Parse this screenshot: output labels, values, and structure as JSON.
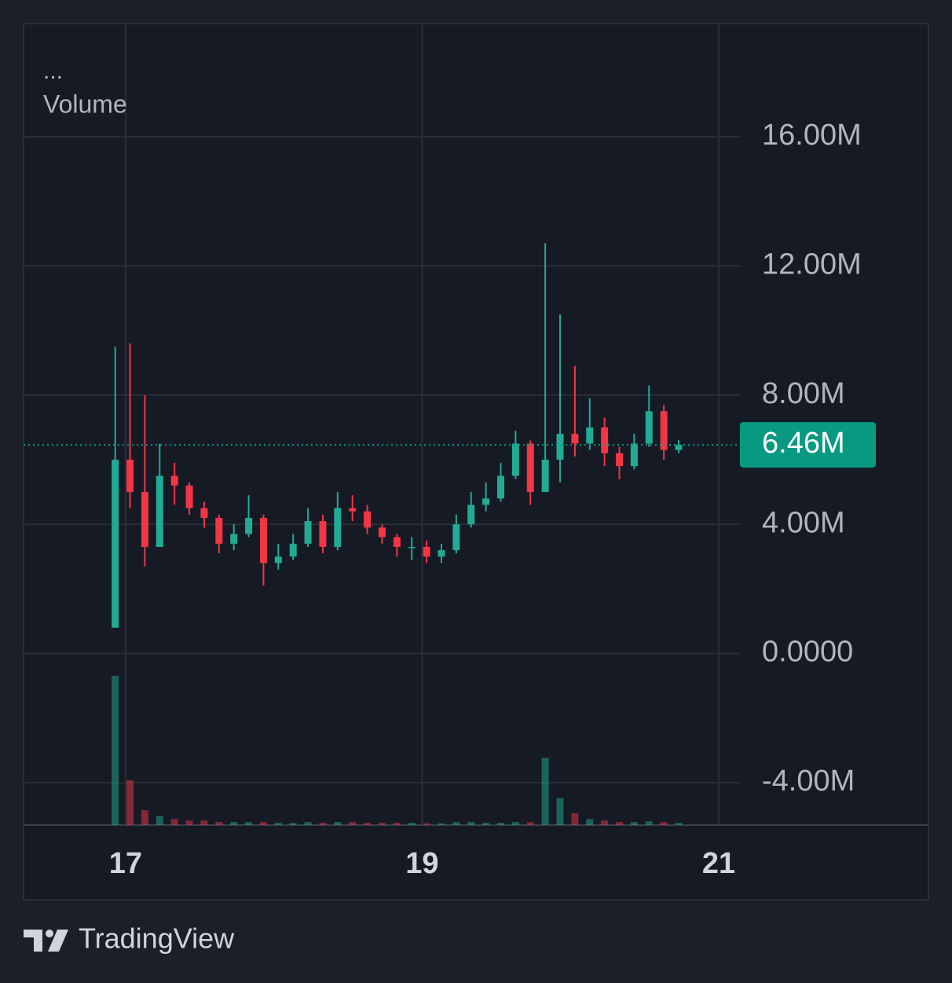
{
  "chart_data": {
    "type": "candlestick",
    "menu": "...",
    "title": "Volume",
    "x": [
      16.93,
      17.03,
      17.13,
      17.23,
      17.33,
      17.43,
      17.53,
      17.63,
      17.73,
      17.83,
      17.93,
      18.03,
      18.13,
      18.23,
      18.33,
      18.43,
      18.53,
      18.63,
      18.73,
      18.83,
      18.93,
      19.03,
      19.13,
      19.23,
      19.33,
      19.43,
      19.53,
      19.63,
      19.73,
      19.83,
      19.93,
      20.03,
      20.13,
      20.23,
      20.33,
      20.43,
      20.53,
      20.63,
      20.73
    ],
    "open": [
      800000,
      6000000,
      5000000,
      3300000,
      5500000,
      5200000,
      4500000,
      4200000,
      3400000,
      3700000,
      4200000,
      2800000,
      3000000,
      3400000,
      4100000,
      3300000,
      4500000,
      4400000,
      3900000,
      3600000,
      3300000,
      3300000,
      3000000,
      3200000,
      4000000,
      4600000,
      4800000,
      5500000,
      6500000,
      5000000,
      6000000,
      6800000,
      6500000,
      7000000,
      6200000,
      5800000,
      6500000,
      7500000,
      6300000
    ],
    "high": [
      9500000,
      9600000,
      8000000,
      6500000,
      5900000,
      5300000,
      4700000,
      4300000,
      4000000,
      4900000,
      4300000,
      3400000,
      3700000,
      4500000,
      4300000,
      5000000,
      4900000,
      4600000,
      4000000,
      3700000,
      3600000,
      3500000,
      3400000,
      4300000,
      5000000,
      5300000,
      5900000,
      6900000,
      6600000,
      12700000,
      10500000,
      8900000,
      7900000,
      7300000,
      6400000,
      6800000,
      8300000,
      7700000,
      6600000
    ],
    "low": [
      800000,
      4500000,
      2700000,
      3300000,
      4600000,
      4300000,
      3900000,
      3100000,
      3200000,
      3600000,
      2100000,
      2600000,
      2900000,
      3300000,
      3100000,
      3200000,
      4100000,
      3700000,
      3400000,
      3000000,
      2900000,
      2800000,
      2800000,
      3100000,
      3900000,
      4400000,
      4700000,
      5400000,
      4600000,
      5000000,
      5300000,
      6100000,
      6300000,
      5800000,
      5400000,
      5700000,
      6400000,
      6000000,
      6200000
    ],
    "close": [
      6000000,
      5000000,
      3300000,
      5500000,
      5200000,
      4500000,
      4200000,
      3400000,
      3700000,
      4200000,
      2800000,
      3000000,
      3400000,
      4100000,
      3300000,
      4500000,
      4400000,
      3900000,
      3600000,
      3300000,
      3300000,
      3000000,
      3200000,
      4000000,
      4600000,
      4800000,
      5500000,
      6500000,
      5000000,
      6000000,
      6800000,
      6500000,
      7000000,
      6200000,
      5800000,
      6500000,
      7500000,
      6300000,
      6460000
    ],
    "volume": [
      100,
      30,
      10,
      6,
      4,
      3,
      3,
      2,
      2,
      2,
      2,
      1.5,
      1.5,
      2,
      1.5,
      2,
      2,
      1.5,
      1.5,
      1.5,
      1.5,
      1.2,
      1.2,
      2,
      2,
      1.5,
      1.5,
      2,
      2,
      45,
      18,
      8,
      4,
      3,
      2,
      2,
      2.5,
      2,
      1.5
    ],
    "up_color": "#22ab94",
    "down_color": "#f23645",
    "ylim": [
      -5310000,
      19500000
    ],
    "yticks": [
      {
        "value": -4000000,
        "label": "-4.00M"
      },
      {
        "value": 0,
        "label": "0.0000"
      },
      {
        "value": 4000000,
        "label": "4.00M"
      },
      {
        "value": 8000000,
        "label": "8.00M"
      },
      {
        "value": 12000000,
        "label": "12.00M"
      },
      {
        "value": 16000000,
        "label": "16.00M"
      }
    ],
    "xlim": [
      16.312,
      21.143
    ],
    "xticks": [
      17,
      19,
      21
    ],
    "grid": true,
    "last": {
      "value": 6460000,
      "label": "6.46M"
    },
    "last_color": "#089981"
  },
  "footer": {
    "brand": "TradingView"
  }
}
